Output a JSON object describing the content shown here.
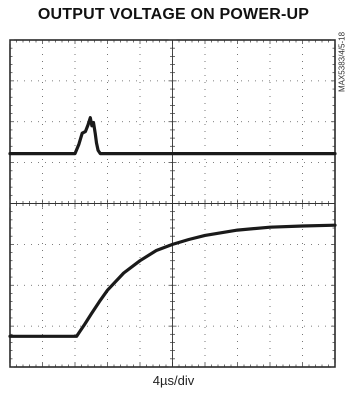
{
  "chart_data": {
    "type": "line",
    "title": "OUTPUT VOLTAGE ON POWER-UP",
    "xlabel": "4µs/div",
    "figure_id": "MAX5383/4/5-18",
    "grid": true,
    "xlim": [
      0,
      10
    ],
    "ylim": [
      0,
      8
    ],
    "series": [
      {
        "x": [
          0,
          2.0,
          2.12,
          2.22,
          2.32,
          2.4,
          2.47,
          2.52,
          2.57,
          2.62,
          2.66,
          2.71,
          2.78,
          2.86,
          3.0,
          10
        ],
        "values": [
          5.22,
          5.22,
          5.45,
          5.72,
          5.76,
          5.92,
          6.1,
          5.9,
          5.98,
          5.72,
          5.48,
          5.3,
          5.22,
          5.22,
          5.22,
          5.22
        ]
      },
      {
        "x": [
          0,
          2.05,
          2.15,
          2.3,
          2.5,
          2.75,
          3.0,
          3.5,
          4.0,
          4.5,
          5.0,
          5.5,
          6.0,
          7.0,
          8.0,
          9.0,
          10
        ],
        "values": [
          0.75,
          0.75,
          0.87,
          1.05,
          1.3,
          1.6,
          1.88,
          2.3,
          2.6,
          2.85,
          3.0,
          3.12,
          3.22,
          3.35,
          3.42,
          3.45,
          3.47
        ]
      }
    ]
  }
}
